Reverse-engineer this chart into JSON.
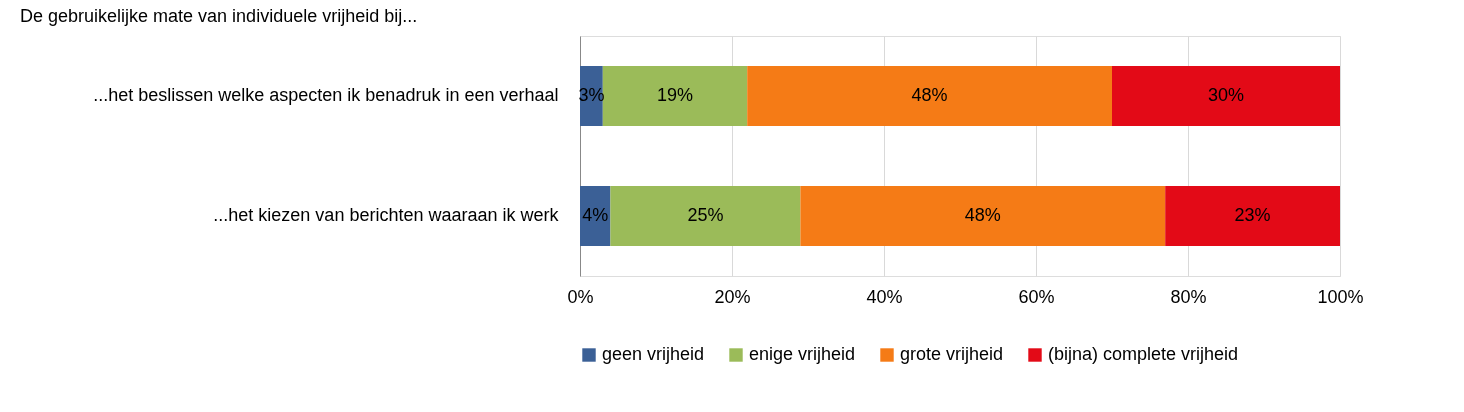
{
  "chart_data": {
    "type": "bar",
    "orientation": "horizontal",
    "stacked": true,
    "title": "De gebruikelijke mate van individuele vrijheid bij...",
    "categories": [
      "...het beslissen welke aspecten ik benadruk in een verhaal",
      "...het kiezen van berichten waaraan ik werk"
    ],
    "series": [
      {
        "name": "geen vrijheid",
        "color": "#3b6096",
        "values": [
          3,
          4
        ],
        "value_labels": [
          "3%",
          "4%"
        ]
      },
      {
        "name": "enige vrijheid",
        "color": "#9bbb59",
        "values": [
          19,
          25
        ],
        "value_labels": [
          "19%",
          "25%"
        ]
      },
      {
        "name": "grote vrijheid",
        "color": "#f57b16",
        "values": [
          48,
          48
        ],
        "value_labels": [
          "48%",
          "48%"
        ]
      },
      {
        "name": "(bijna) complete vrijheid",
        "color": "#e30a17",
        "values": [
          30,
          23
        ],
        "value_labels": [
          "30%",
          "23%"
        ]
      }
    ],
    "xlim": [
      0,
      100
    ],
    "xticks": [
      {
        "value": 0,
        "label": "0%"
      },
      {
        "value": 20,
        "label": "20%"
      },
      {
        "value": 40,
        "label": "40%"
      },
      {
        "value": 60,
        "label": "60%"
      },
      {
        "value": 80,
        "label": "80%"
      },
      {
        "value": 100,
        "label": "100%"
      }
    ],
    "grid": "x",
    "legend": "bottom"
  }
}
